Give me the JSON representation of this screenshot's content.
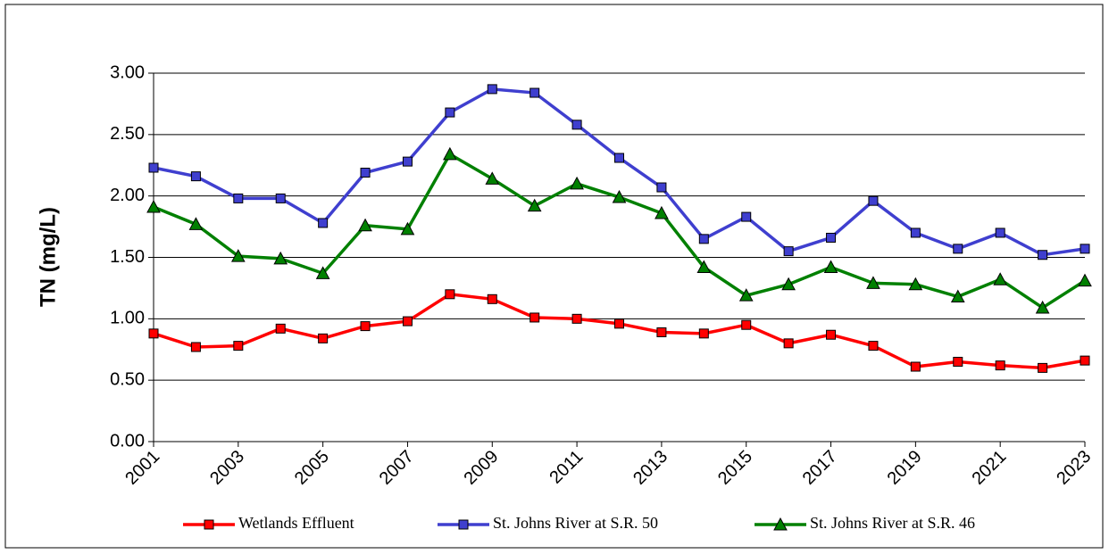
{
  "chart_data": {
    "type": "line",
    "ylabel": "TN (mg/L)",
    "x": [
      2001,
      2002,
      2003,
      2004,
      2005,
      2006,
      2007,
      2008,
      2009,
      2010,
      2011,
      2012,
      2013,
      2014,
      2015,
      2016,
      2017,
      2018,
      2019,
      2020,
      2021,
      2022,
      2023
    ],
    "xlim": [
      2001,
      2023
    ],
    "xticks": [
      2001,
      2003,
      2005,
      2007,
      2009,
      2011,
      2013,
      2015,
      2017,
      2019,
      2021,
      2023
    ],
    "ylim": [
      0,
      3
    ],
    "yticks": [
      {
        "value": 0,
        "label": "0.00"
      },
      {
        "value": 0.5,
        "label": "0.50"
      },
      {
        "value": 1,
        "label": "1.00"
      },
      {
        "value": 1.5,
        "label": "1.50"
      },
      {
        "value": 2,
        "label": "2.00"
      },
      {
        "value": 2.5,
        "label": "2.50"
      },
      {
        "value": 3,
        "label": "3.00"
      }
    ],
    "grid": true,
    "legend": "bottom",
    "series": [
      {
        "name": "Wetlands Effluent",
        "color": "#ff0000",
        "marker": "square",
        "values": [
          0.88,
          0.77,
          0.78,
          0.92,
          0.84,
          0.94,
          0.98,
          1.2,
          1.16,
          1.01,
          1.0,
          0.96,
          0.89,
          0.88,
          0.95,
          0.8,
          0.87,
          0.78,
          0.61,
          0.65,
          0.62,
          0.6,
          0.66
        ]
      },
      {
        "name": "St. Johns River at S.R. 50",
        "color": "#3f3fcf",
        "marker": "square",
        "values": [
          2.23,
          2.16,
          1.98,
          1.98,
          1.78,
          2.19,
          2.28,
          2.68,
          2.87,
          2.84,
          2.58,
          2.31,
          2.07,
          1.65,
          1.83,
          1.55,
          1.66,
          1.96,
          1.7,
          1.57,
          1.7,
          1.52,
          1.57
        ]
      },
      {
        "name": "St. Johns River at S.R. 46",
        "color": "#008000",
        "marker": "triangle",
        "values": [
          1.91,
          1.77,
          1.51,
          1.49,
          1.37,
          1.76,
          1.73,
          2.34,
          2.14,
          1.92,
          2.1,
          1.99,
          1.86,
          1.42,
          1.19,
          1.28,
          1.42,
          1.29,
          1.28,
          1.18,
          1.32,
          1.09,
          1.31
        ]
      }
    ]
  }
}
